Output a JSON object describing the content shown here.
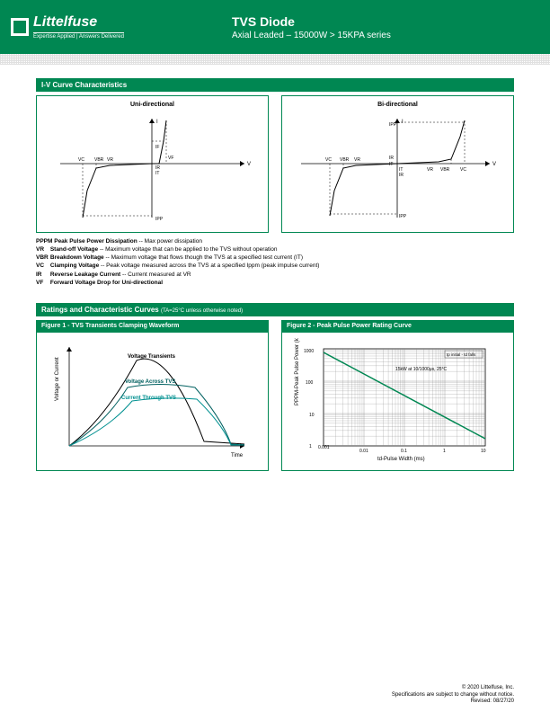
{
  "header": {
    "logo_name": "Littelfuse",
    "logo_tagline": "Expertise Applied | Answers Delivered",
    "title": "TVS Diode",
    "subtitle": "Axial Leaded – 15000W > 15KPA series"
  },
  "sections": {
    "iv_curve": "I-V Curve Characteristics",
    "ratings": "Ratings and Characteristic Curves",
    "ratings_note": "(TA=25°C unless otherwise noted)",
    "fig1": "Figure 1 - TVS Transients Clamping Waveform",
    "fig2": "Figure 2 - Peak Pulse Power Rating Curve"
  },
  "iv_graphs": {
    "uni": "Uni-directional",
    "bi": "Bi-directional",
    "labels": {
      "I": "I",
      "V": "V",
      "Ipp": "IPP",
      "IR": "IR",
      "IT": "IT",
      "Vc": "VC",
      "Vbr": "VBR",
      "Vr": "VR",
      "Vf": "VF",
      "If": "IF"
    }
  },
  "definitions": [
    {
      "sym": "PPPM",
      "term": "Peak Pulse Power Dissipation",
      "desc": " -- Max power dissipation"
    },
    {
      "sym": "VR",
      "term": "Stand-off Voltage",
      "desc": " -- Maximum voltage that can be applied to the TVS without operation"
    },
    {
      "sym": "VBR",
      "term": "Breakdown Voltage",
      "desc": " --  Maximum voltage that flows though the TVS at a specified test current (IT)"
    },
    {
      "sym": "VC",
      "term": "Clamping Voltage",
      "desc": " -- Peak voltage measured across the TVS at a specified Ippm (peak impulse current)"
    },
    {
      "sym": "IR",
      "term": "Reverse Leakage Current",
      "desc": " -- Current measured at VR"
    },
    {
      "sym": "VF",
      "term": "Forward Voltage Drop for Uni-directional",
      "desc": ""
    }
  ],
  "fig1_chart": {
    "xlabel": "Time",
    "ylabel": "Voltage or Current",
    "curve_labels": [
      "Voltage Transients",
      "Voltage Across TVS",
      "Current Through TVS"
    ],
    "colors": {
      "transients": "#000000",
      "voltage_tvs": "#006060",
      "current_tvs": "#009090",
      "axis": "#000000"
    }
  },
  "fig2_chart": {
    "xlabel": "td-Pulse Width (ms)",
    "ylabel": "PPPM-Peak Pulse Power (kW)",
    "note1": "tp initial - td falls",
    "note2": "15kW at 10/1000μs, 25°C",
    "xticks": [
      "0.001",
      "0.01",
      "0.1",
      "1",
      "10"
    ],
    "yticks": [
      "1",
      "10",
      "100",
      "1000"
    ],
    "line_color": "#008752",
    "grid_color": "#888888",
    "data_points": [
      [
        0.001,
        800
      ],
      [
        10,
        2
      ]
    ]
  },
  "footer": {
    "l1": "© 2020 Littelfuse, Inc.",
    "l2": "Specifications are subject to change without notice.",
    "l3": "Revised: 08/27/20"
  }
}
